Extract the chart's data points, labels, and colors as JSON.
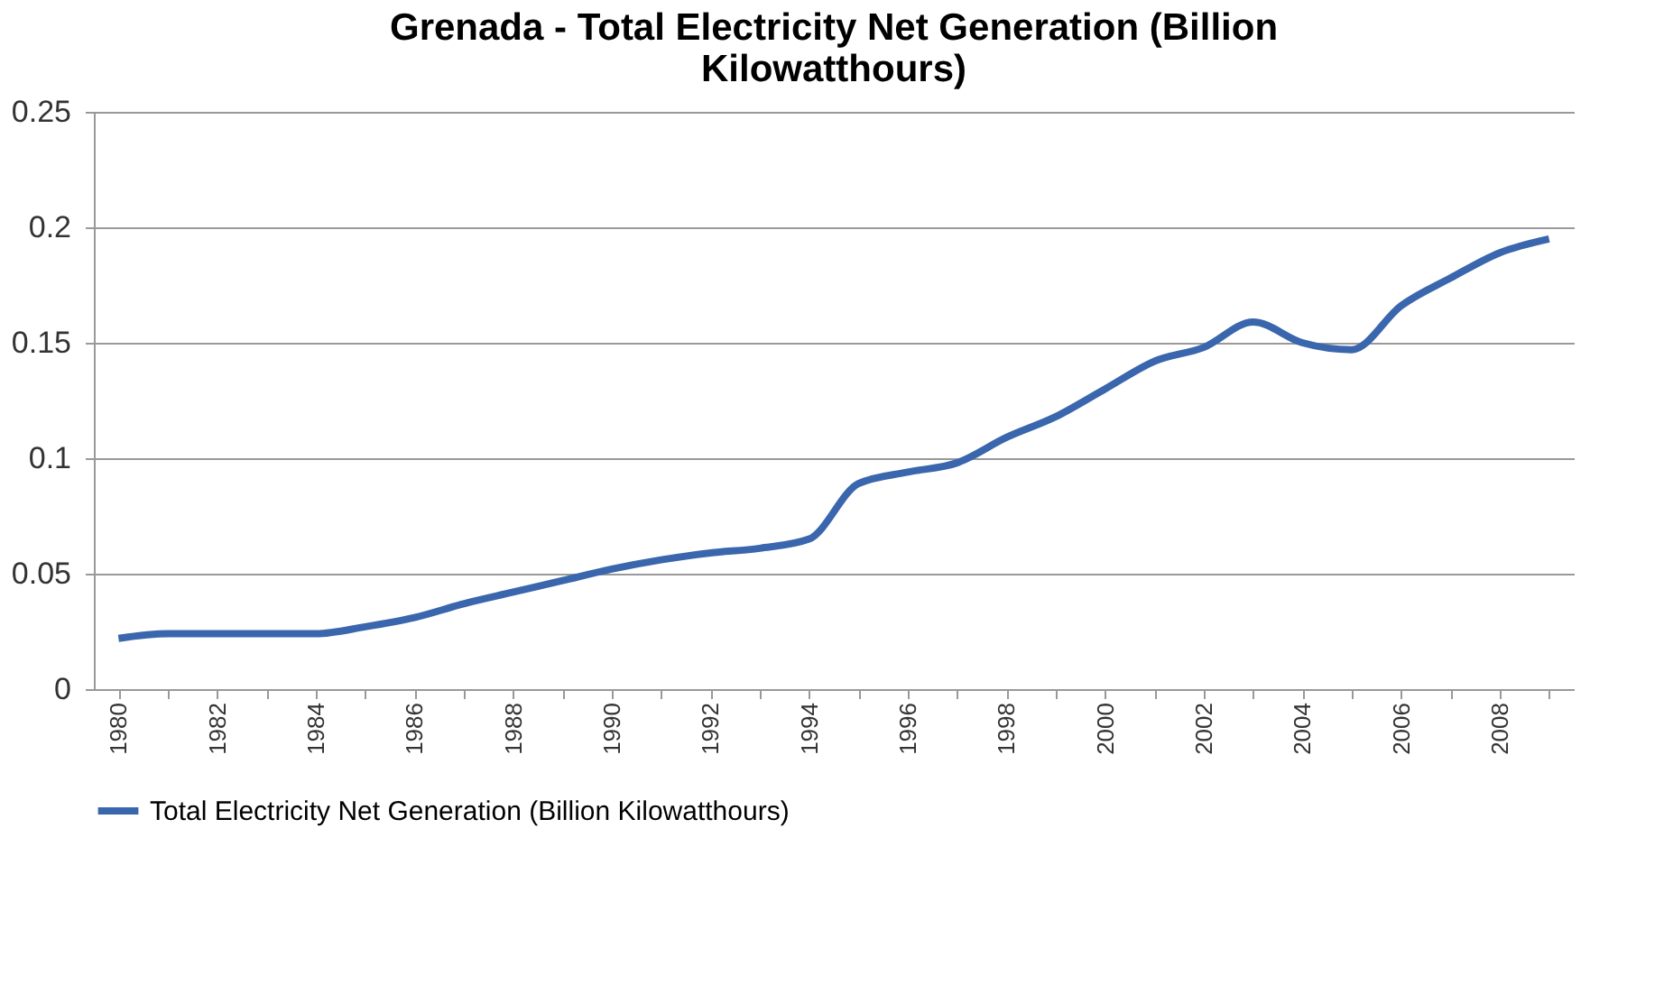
{
  "chart_data": {
    "type": "line",
    "title": [
      "Grenada - Total Electricity Net Generation (Billion",
      "Kilowatthours)"
    ],
    "categories": [
      "1980",
      null,
      "1982",
      null,
      "1984",
      null,
      "1986",
      null,
      "1988",
      null,
      "1990",
      null,
      "1992",
      null,
      "1994",
      null,
      "1996",
      null,
      "1998",
      null,
      "2000",
      null,
      "2002",
      null,
      "2004",
      null,
      "2006",
      null,
      "2008",
      null
    ],
    "series": [
      {
        "name": "Total Electricity Net Generation (Billion Kilowatthours)",
        "color": "#3a66ad",
        "values": [
          0.022,
          0.024,
          0.024,
          0.024,
          0.024,
          0.027,
          0.031,
          0.037,
          0.042,
          0.047,
          0.052,
          0.056,
          0.059,
          0.061,
          0.065,
          0.089,
          0.094,
          0.098,
          0.109,
          0.118,
          0.13,
          0.142,
          0.148,
          0.159,
          0.15,
          0.147,
          0.166,
          0.178,
          0.189,
          0.195
        ]
      }
    ],
    "ylim": [
      0,
      0.25
    ],
    "yticks": [
      0,
      0.05,
      0.1,
      0.15,
      0.2,
      0.25
    ],
    "grid": "y",
    "legend": "bottom",
    "marker": "none",
    "line_style": "solid"
  }
}
